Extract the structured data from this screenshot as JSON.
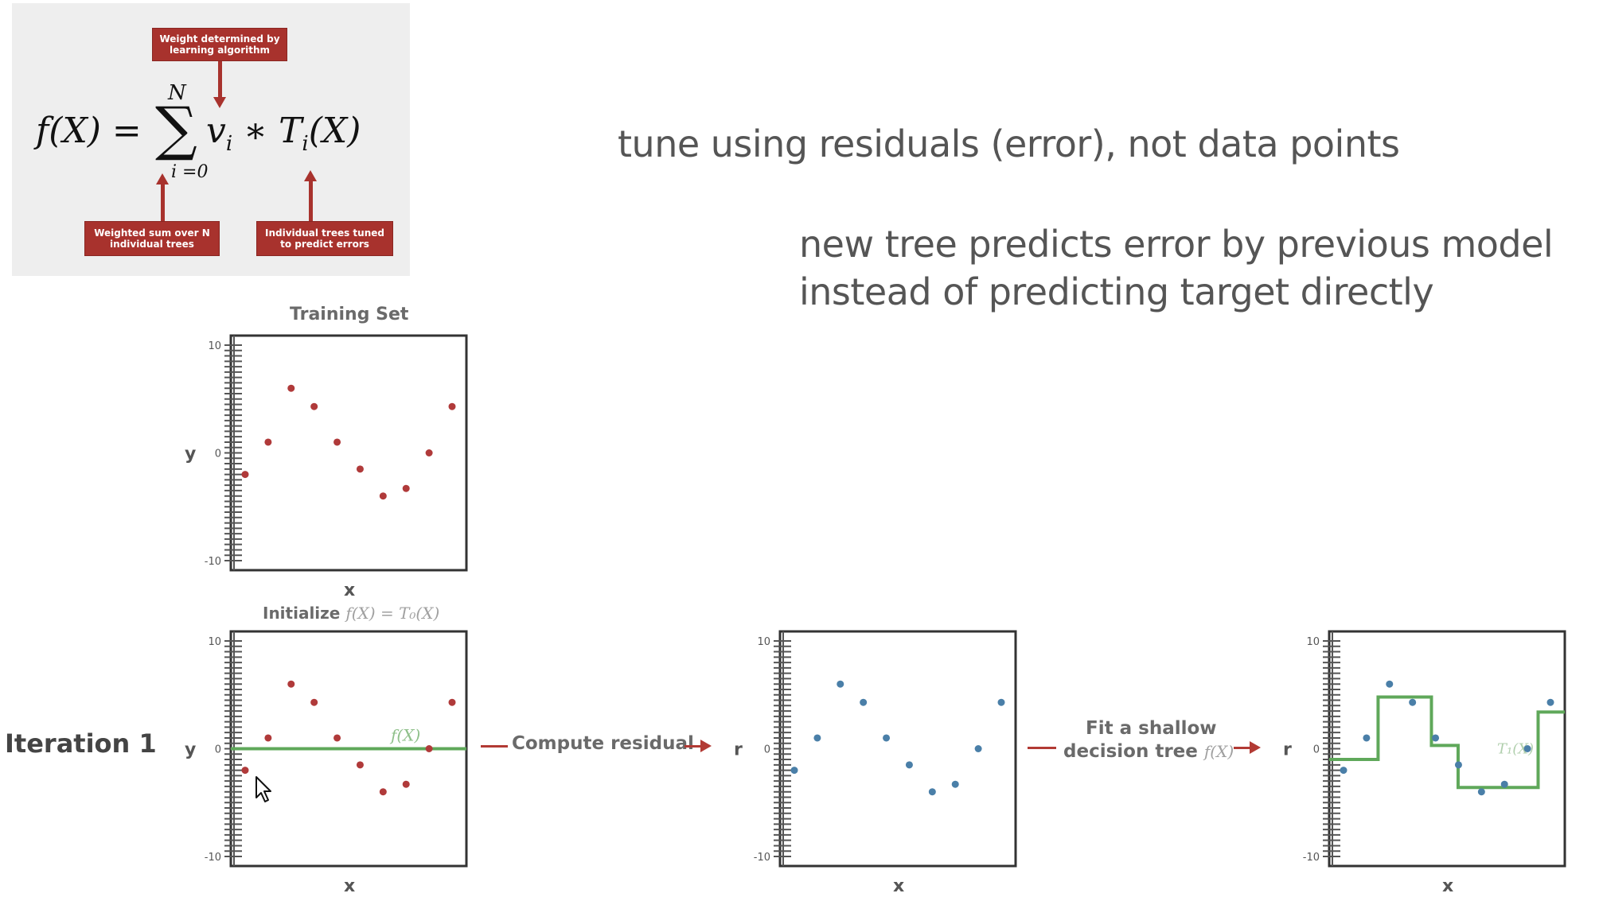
{
  "formula_card": {
    "top_label": "Weight determined by learning algorithm",
    "left_label": "Weighted sum over N individual trees",
    "right_label": "Individual trees tuned to predict errors",
    "lhs": "f(X) =",
    "sum_upper": "N",
    "sum_symbol": "∑",
    "sum_lower": "i =0",
    "term": "v",
    "term_sub": "i",
    "tree": " ∗ T",
    "tree_sub": "i",
    "tree_arg": "(X)"
  },
  "headline1": "tune using residuals (error), not data points",
  "headline2_line1": "new tree predicts error by previous model",
  "headline2_line2": "instead of predicting target directly",
  "iteration_label": "Iteration 1",
  "arrow1_label": "Compute residual",
  "arrow2_label_line1": "Fit a shallow",
  "arrow2_label_line2": "decision tree",
  "arrow2_label_fx": "f(X)",
  "colors": {
    "red_point": "#b03a3a",
    "blue_point": "#4a7fa8",
    "green_line": "#5fa85a",
    "accent_red": "#a8322d"
  },
  "chart_data": [
    {
      "type": "scatter",
      "title": "Training Set",
      "xlabel": "x",
      "ylabel": "y",
      "ylim": [
        -10,
        10
      ],
      "yticks": [
        "10",
        "0",
        "-10"
      ],
      "x": [
        1,
        2,
        3,
        4,
        5,
        6,
        7,
        8,
        9,
        10
      ],
      "y": [
        -2,
        1,
        6,
        4.3,
        1,
        -1.5,
        -4,
        -3.3,
        0,
        4.3
      ],
      "point_color": "#b03a3a"
    },
    {
      "type": "scatter",
      "title": "Initialize",
      "title_math": "f(X) = T₀(X)",
      "xlabel": "x",
      "ylabel": "y",
      "ylim": [
        -10,
        10
      ],
      "yticks": [
        "10",
        "0",
        "-10"
      ],
      "x": [
        1,
        2,
        3,
        4,
        5,
        6,
        7,
        8,
        9,
        10
      ],
      "y": [
        -2,
        1,
        6,
        4.3,
        1,
        -1.5,
        -4,
        -3.3,
        0,
        4.3
      ],
      "point_color": "#b03a3a",
      "line_label": "f(X)",
      "line_y": 0
    },
    {
      "type": "scatter",
      "title": "",
      "xlabel": "x",
      "ylabel": "r",
      "ylim": [
        -10,
        10
      ],
      "yticks": [
        "10",
        "0",
        "-10"
      ],
      "x": [
        1,
        2,
        3,
        4,
        5,
        6,
        7,
        8,
        9,
        10
      ],
      "y": [
        -2,
        1,
        6,
        4.3,
        1,
        -1.5,
        -4,
        -3.3,
        0,
        4.3
      ],
      "point_color": "#4a7fa8"
    },
    {
      "type": "scatter",
      "title": "",
      "xlabel": "x",
      "ylabel": "r",
      "ylim": [
        -10,
        10
      ],
      "yticks": [
        "10",
        "0",
        "-10"
      ],
      "x": [
        1,
        2,
        3,
        4,
        5,
        6,
        7,
        8,
        9,
        10
      ],
      "y": [
        -2,
        1,
        6,
        4.3,
        1,
        -1.5,
        -4,
        -3.3,
        0,
        4.3
      ],
      "point_color": "#4a7fa8",
      "step_label": "T₁(X)",
      "step_x": [
        0,
        2.2,
        4.6,
        5.8,
        9.4,
        10.6
      ],
      "step_y": [
        -1,
        4.8,
        0.3,
        -3.6,
        3.4
      ]
    }
  ]
}
